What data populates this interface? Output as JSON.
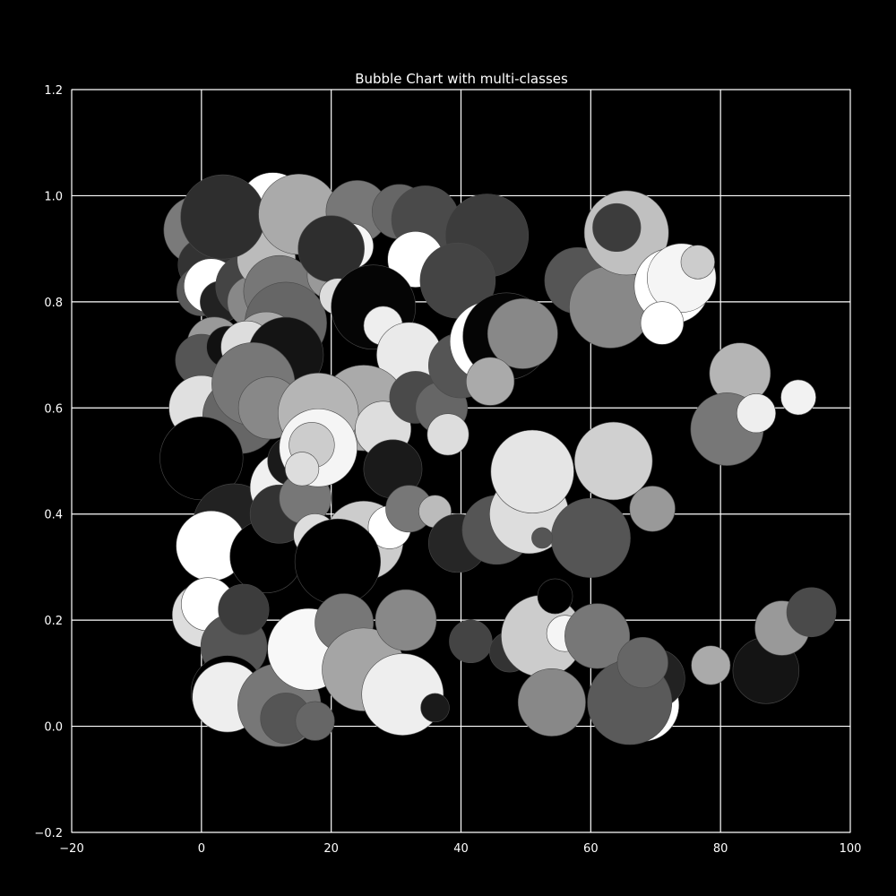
{
  "chart_data": {
    "type": "scatter",
    "title": "Bubble Chart with multi-classes",
    "xlabel": "",
    "ylabel": "",
    "xlim": [
      -20,
      100
    ],
    "ylim": [
      -0.2,
      1.2
    ],
    "x_ticks": [
      "−20",
      "0",
      "20",
      "40",
      "60",
      "80",
      "100"
    ],
    "y_ticks": [
      "−0.2",
      "0.0",
      "0.2",
      "0.4",
      "0.6",
      "0.8",
      "1.0",
      "1.2"
    ],
    "grid": true,
    "background": "#000000",
    "foreground": "#ffffff",
    "bubbles": [
      {
        "x": -0.5,
        "y": 0.935,
        "r": 5.3,
        "color": "#7a7a7a"
      },
      {
        "x": 0.5,
        "y": 0.87,
        "r": 4.1,
        "color": "#333333"
      },
      {
        "x": 0,
        "y": 0.82,
        "r": 3.8,
        "color": "#5a5a5a"
      },
      {
        "x": 1.5,
        "y": 0.83,
        "r": 4.2,
        "color": "#ffffff"
      },
      {
        "x": 3,
        "y": 0.8,
        "r": 3.2,
        "color": "#222222"
      },
      {
        "x": 2,
        "y": 0.72,
        "r": 4.2,
        "color": "#999999"
      },
      {
        "x": 0,
        "y": 0.69,
        "r": 4.0,
        "color": "#555555"
      },
      {
        "x": 4,
        "y": 0.715,
        "r": 3.2,
        "color": "#111111"
      },
      {
        "x": 7,
        "y": 0.83,
        "r": 4.8,
        "color": "#444444"
      },
      {
        "x": 8,
        "y": 0.8,
        "r": 4.0,
        "color": "#888888"
      },
      {
        "x": 11,
        "y": 0.98,
        "r": 5.2,
        "color": "#ffffff"
      },
      {
        "x": 10,
        "y": 0.88,
        "r": 4.5,
        "color": "#bbbbbb"
      },
      {
        "x": 12,
        "y": 0.82,
        "r": 5.5,
        "color": "#777777"
      },
      {
        "x": 13,
        "y": 0.76,
        "r": 6.3,
        "color": "#666666"
      },
      {
        "x": 3.3,
        "y": 0.96,
        "r": 6.5,
        "color": "#2e2e2e"
      },
      {
        "x": 15,
        "y": 0.965,
        "r": 6.2,
        "color": "#aaaaaa"
      },
      {
        "x": 24,
        "y": 0.97,
        "r": 4.8,
        "color": "#777777"
      },
      {
        "x": 23,
        "y": 0.905,
        "r": 3.5,
        "color": "#f5f5f5"
      },
      {
        "x": 20,
        "y": 0.85,
        "r": 3.7,
        "color": "#999999"
      },
      {
        "x": 20,
        "y": 0.9,
        "r": 5.1,
        "color": "#2e2e2e"
      },
      {
        "x": 30.5,
        "y": 0.97,
        "r": 4.2,
        "color": "#666666"
      },
      {
        "x": 34.5,
        "y": 0.955,
        "r": 5.2,
        "color": "#4a4a4a"
      },
      {
        "x": 33,
        "y": 0.88,
        "r": 4.3,
        "color": "#ffffff"
      },
      {
        "x": 44,
        "y": 0.925,
        "r": 6.4,
        "color": "#3c3c3c"
      },
      {
        "x": 39.5,
        "y": 0.84,
        "r": 5.8,
        "color": "#444444"
      },
      {
        "x": 21,
        "y": 0.81,
        "r": 2.8,
        "color": "#dddddd"
      },
      {
        "x": 26.5,
        "y": 0.79,
        "r": 6.5,
        "color": "#050505"
      },
      {
        "x": 28,
        "y": 0.755,
        "r": 3.0,
        "color": "#eeeeee"
      },
      {
        "x": 32,
        "y": 0.7,
        "r": 5.0,
        "color": "#eaeaea"
      },
      {
        "x": 10,
        "y": 0.72,
        "r": 5.0,
        "color": "#aaaaaa"
      },
      {
        "x": 7,
        "y": 0.715,
        "r": 4.0,
        "color": "#dddddd"
      },
      {
        "x": 13,
        "y": 0.7,
        "r": 5.8,
        "color": "#141414"
      },
      {
        "x": 0,
        "y": 0.6,
        "r": 5.0,
        "color": "#e0e0e0"
      },
      {
        "x": 6,
        "y": 0.585,
        "r": 5.8,
        "color": "#666666"
      },
      {
        "x": 8,
        "y": 0.645,
        "r": 6.4,
        "color": "#777777"
      },
      {
        "x": 10.5,
        "y": 0.6,
        "r": 4.8,
        "color": "#888888"
      },
      {
        "x": 25,
        "y": 0.6,
        "r": 6.6,
        "color": "#aaaaaa"
      },
      {
        "x": 18,
        "y": 0.59,
        "r": 6.2,
        "color": "#b5b5b5"
      },
      {
        "x": 28,
        "y": 0.56,
        "r": 4.3,
        "color": "#dddddd"
      },
      {
        "x": 33,
        "y": 0.62,
        "r": 4.0,
        "color": "#4a4a4a"
      },
      {
        "x": 37,
        "y": 0.6,
        "r": 4.0,
        "color": "#666666"
      },
      {
        "x": 40,
        "y": 0.68,
        "r": 5.0,
        "color": "#555555"
      },
      {
        "x": 44.5,
        "y": 0.725,
        "r": 6.2,
        "color": "#ffffff"
      },
      {
        "x": 47,
        "y": 0.735,
        "r": 6.7,
        "color": "#050505"
      },
      {
        "x": 49.5,
        "y": 0.74,
        "r": 5.4,
        "color": "#888888"
      },
      {
        "x": 44.5,
        "y": 0.65,
        "r": 3.7,
        "color": "#aaaaaa"
      },
      {
        "x": 38,
        "y": 0.55,
        "r": 3.2,
        "color": "#dddddd"
      },
      {
        "x": 58,
        "y": 0.84,
        "r": 5.1,
        "color": "#555555"
      },
      {
        "x": 63,
        "y": 0.79,
        "r": 6.3,
        "color": "#888888"
      },
      {
        "x": 65.5,
        "y": 0.93,
        "r": 6.5,
        "color": "#c0c0c0"
      },
      {
        "x": 64,
        "y": 0.94,
        "r": 3.7,
        "color": "#3c3c3c"
      },
      {
        "x": 72.5,
        "y": 0.83,
        "r": 5.8,
        "color": "#ffffff"
      },
      {
        "x": 74,
        "y": 0.845,
        "r": 5.3,
        "color": "#f5f5f5"
      },
      {
        "x": 76.5,
        "y": 0.875,
        "r": 2.6,
        "color": "#cccccc"
      },
      {
        "x": 71,
        "y": 0.76,
        "r": 3.3,
        "color": "#ffffff"
      },
      {
        "x": 83,
        "y": 0.665,
        "r": 4.7,
        "color": "#b5b5b5"
      },
      {
        "x": 81,
        "y": 0.56,
        "r": 5.6,
        "color": "#777777"
      },
      {
        "x": 85.5,
        "y": 0.59,
        "r": 3.0,
        "color": "#eeeeee"
      },
      {
        "x": 92,
        "y": 0.62,
        "r": 2.7,
        "color": "#f2f2f2"
      },
      {
        "x": 0,
        "y": 0.505,
        "r": 6.4,
        "color": "#000000"
      },
      {
        "x": 5,
        "y": 0.38,
        "r": 6.3,
        "color": "#222222"
      },
      {
        "x": 1.5,
        "y": 0.34,
        "r": 5.4,
        "color": "#ffffff"
      },
      {
        "x": 10,
        "y": 0.32,
        "r": 5.6,
        "color": "#000000"
      },
      {
        "x": 13,
        "y": 0.45,
        "r": 5.5,
        "color": "#f0f0f0"
      },
      {
        "x": 14,
        "y": 0.5,
        "r": 3.8,
        "color": "#1a1a1a"
      },
      {
        "x": 12,
        "y": 0.4,
        "r": 4.5,
        "color": "#333333"
      },
      {
        "x": 16,
        "y": 0.43,
        "r": 4.0,
        "color": "#777777"
      },
      {
        "x": 18,
        "y": 0.525,
        "r": 6.0,
        "color": "#f5f5f5"
      },
      {
        "x": 17,
        "y": 0.53,
        "r": 3.5,
        "color": "#cccccc"
      },
      {
        "x": 15.5,
        "y": 0.485,
        "r": 2.6,
        "color": "#dddddd"
      },
      {
        "x": 29.5,
        "y": 0.485,
        "r": 4.5,
        "color": "#1a1a1a"
      },
      {
        "x": 25,
        "y": 0.35,
        "r": 6.1,
        "color": "#cccccc"
      },
      {
        "x": 29,
        "y": 0.375,
        "r": 3.3,
        "color": "#ffffff"
      },
      {
        "x": 17.5,
        "y": 0.36,
        "r": 3.3,
        "color": "#dddddd"
      },
      {
        "x": 21,
        "y": 0.31,
        "r": 6.6,
        "color": "#000000"
      },
      {
        "x": 32,
        "y": 0.41,
        "r": 3.6,
        "color": "#777777"
      },
      {
        "x": 36,
        "y": 0.405,
        "r": 2.5,
        "color": "#bbbbbb"
      },
      {
        "x": 39.5,
        "y": 0.345,
        "r": 4.5,
        "color": "#262626"
      },
      {
        "x": 45.5,
        "y": 0.37,
        "r": 5.3,
        "color": "#555555"
      },
      {
        "x": 50.5,
        "y": 0.4,
        "r": 6.1,
        "color": "#dddddd"
      },
      {
        "x": 51,
        "y": 0.48,
        "r": 6.4,
        "color": "#e5e5e5"
      },
      {
        "x": 63.5,
        "y": 0.5,
        "r": 6.0,
        "color": "#d0d0d0"
      },
      {
        "x": 60,
        "y": 0.355,
        "r": 6.1,
        "color": "#555555"
      },
      {
        "x": 52.5,
        "y": 0.355,
        "r": 1.6,
        "color": "#555555"
      },
      {
        "x": 69.5,
        "y": 0.41,
        "r": 3.5,
        "color": "#999999"
      },
      {
        "x": 0.5,
        "y": 0.21,
        "r": 5.0,
        "color": "#dddddd"
      },
      {
        "x": 1,
        "y": 0.23,
        "r": 4.1,
        "color": "#ffffff"
      },
      {
        "x": 5,
        "y": 0.15,
        "r": 5.1,
        "color": "#555555"
      },
      {
        "x": 6.5,
        "y": 0.22,
        "r": 3.9,
        "color": "#3c3c3c"
      },
      {
        "x": 4,
        "y": 0.065,
        "r": 5.6,
        "color": "#000000"
      },
      {
        "x": 4,
        "y": 0.055,
        "r": 5.4,
        "color": "#eeeeee"
      },
      {
        "x": 12,
        "y": 0.04,
        "r": 6.4,
        "color": "#777777"
      },
      {
        "x": 13,
        "y": 0.015,
        "r": 3.9,
        "color": "#555555"
      },
      {
        "x": 17.5,
        "y": 0.01,
        "r": 3.0,
        "color": "#666666"
      },
      {
        "x": 16.5,
        "y": 0.145,
        "r": 6.3,
        "color": "#f8f8f8"
      },
      {
        "x": 22,
        "y": 0.195,
        "r": 4.5,
        "color": "#777777"
      },
      {
        "x": 25,
        "y": 0.107,
        "r": 6.4,
        "color": "#a5a5a5"
      },
      {
        "x": 31,
        "y": 0.06,
        "r": 6.3,
        "color": "#eeeeee"
      },
      {
        "x": 31.5,
        "y": 0.2,
        "r": 4.7,
        "color": "#888888"
      },
      {
        "x": 36,
        "y": 0.035,
        "r": 2.2,
        "color": "#1a1a1a"
      },
      {
        "x": 41.5,
        "y": 0.16,
        "r": 3.3,
        "color": "#444444"
      },
      {
        "x": 47.5,
        "y": 0.14,
        "r": 3.1,
        "color": "#333333"
      },
      {
        "x": 52.5,
        "y": 0.17,
        "r": 6.3,
        "color": "#cccccc"
      },
      {
        "x": 56,
        "y": 0.175,
        "r": 2.8,
        "color": "#f5f5f5"
      },
      {
        "x": 54.5,
        "y": 0.245,
        "r": 2.7,
        "color": "#000000"
      },
      {
        "x": 54,
        "y": 0.045,
        "r": 5.2,
        "color": "#888888"
      },
      {
        "x": 61,
        "y": 0.17,
        "r": 5.0,
        "color": "#777777"
      },
      {
        "x": 68,
        "y": 0.04,
        "r": 5.6,
        "color": "#ffffff"
      },
      {
        "x": 70,
        "y": 0.09,
        "r": 4.5,
        "color": "#222222"
      },
      {
        "x": 66,
        "y": 0.045,
        "r": 6.5,
        "color": "#5a5a5a"
      },
      {
        "x": 68,
        "y": 0.12,
        "r": 3.9,
        "color": "#666666"
      },
      {
        "x": 78.5,
        "y": 0.115,
        "r": 3.0,
        "color": "#aaaaaa"
      },
      {
        "x": 87,
        "y": 0.105,
        "r": 5.1,
        "color": "#141414"
      },
      {
        "x": 89.5,
        "y": 0.185,
        "r": 4.2,
        "color": "#999999"
      },
      {
        "x": 94,
        "y": 0.215,
        "r": 3.8,
        "color": "#4a4a4a"
      }
    ]
  }
}
